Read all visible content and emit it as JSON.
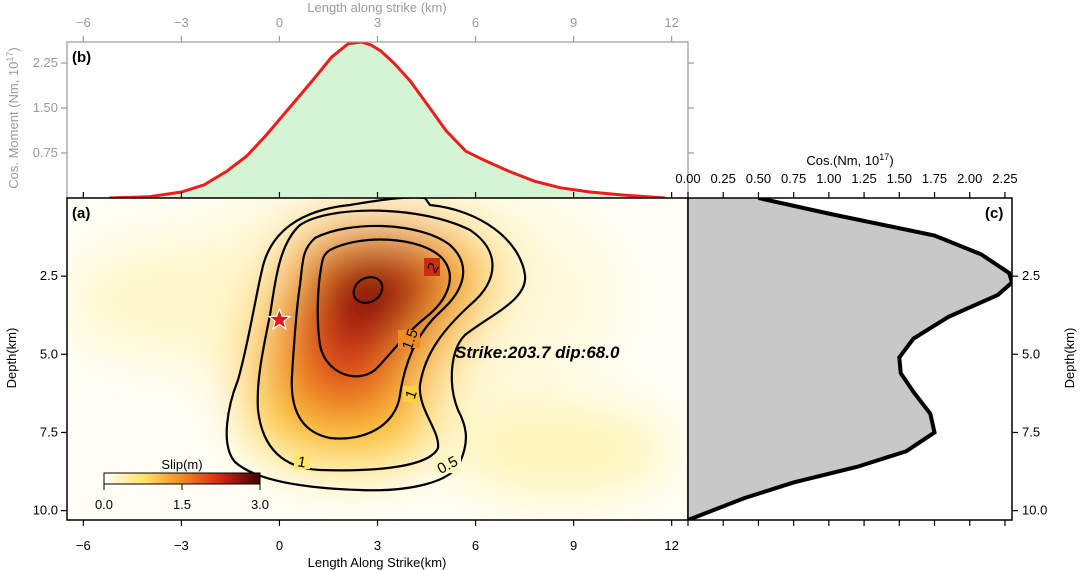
{
  "chart_data": [
    {
      "panel": "(a)",
      "type": "heatmap",
      "xlabel": "Length Along Strike(km)",
      "ylabel": "Depth(km)",
      "xlim": [
        -6.5,
        12.5
      ],
      "ylim": [
        10.3,
        0
      ],
      "xticks": [
        "−6",
        "−3",
        "0",
        "3",
        "6",
        "9",
        "12"
      ],
      "yticks": [
        "2.5",
        "5.0",
        "7.5",
        "10.0"
      ],
      "annotation": "Strike:203.7 dip:68.0",
      "hypocenter": {
        "x": 0,
        "y": 3.9
      },
      "colorbar": {
        "label": "Slip(m)",
        "ticks": [
          "0.0",
          "1.5",
          "3.0"
        ],
        "range": [
          0,
          3
        ]
      },
      "contour_levels": [
        0.5,
        1,
        1.5,
        2,
        2.5
      ],
      "contour_labels": [
        "0.5",
        "1",
        "1",
        "1.5",
        "2"
      ],
      "slip_peak_m": 2.9,
      "slip_peak_location": {
        "x": 2.5,
        "y": 3.2
      }
    },
    {
      "panel": "(b)",
      "type": "area",
      "xlabel": "Length along strike (km)",
      "ylabel": "Cos. Moment (Nm, 10",
      "ylabel_sup": "17",
      "ylabel_end": ")",
      "xlim": [
        -6.5,
        12.5
      ],
      "ylim": [
        0,
        2.6
      ],
      "xticks": [
        "−6",
        "−3",
        "0",
        "3",
        "6",
        "9",
        "12"
      ],
      "yticks": [
        "0.75",
        "1.50",
        "2.25"
      ],
      "x": [
        -5.2,
        -4,
        -3,
        -2.3,
        -1.6,
        -1,
        -0.4,
        0.3,
        1.0,
        1.6,
        2.1,
        2.5,
        2.8,
        3.1,
        3.5,
        4.0,
        4.6,
        5.1,
        5.7,
        6.3,
        7,
        7.8,
        8.6,
        9.5,
        10.5,
        11.8
      ],
      "y": [
        0.0,
        0.02,
        0.1,
        0.22,
        0.45,
        0.7,
        1.05,
        1.5,
        1.95,
        2.35,
        2.57,
        2.6,
        2.55,
        2.45,
        2.25,
        1.95,
        1.5,
        1.12,
        0.78,
        0.62,
        0.45,
        0.28,
        0.17,
        0.1,
        0.05,
        0.0
      ],
      "line_color": "#ee1c1c",
      "fill_color": "#d4f5d4"
    },
    {
      "panel": "(c)",
      "type": "area",
      "xlabel": "Cos.(Nm, 10",
      "xlabel_sup": "17",
      "xlabel_end": ")",
      "ylabel": "Depth(km)",
      "xlim": [
        0,
        2.3
      ],
      "ylim": [
        10.3,
        0
      ],
      "xticks": [
        "0.00",
        "0.25",
        "0.50",
        "0.75",
        "1.00",
        "1.25",
        "1.50",
        "1.75",
        "2.00",
        "2.25"
      ],
      "yticks": [
        "2.5",
        "5.0",
        "7.5",
        "10.0"
      ],
      "depth": [
        0.0,
        0.5,
        1.2,
        1.8,
        2.4,
        2.7,
        3.1,
        3.8,
        4.5,
        5.1,
        5.6,
        6.2,
        6.9,
        7.5,
        8.1,
        8.6,
        9.1,
        9.6,
        10.3
      ],
      "moment": [
        0.5,
        1.0,
        1.75,
        2.08,
        2.28,
        2.3,
        2.2,
        1.85,
        1.6,
        1.5,
        1.51,
        1.6,
        1.72,
        1.75,
        1.55,
        1.2,
        0.75,
        0.4,
        0.0
      ],
      "line_color": "#000000",
      "fill_color": "#c8c8c8"
    }
  ]
}
